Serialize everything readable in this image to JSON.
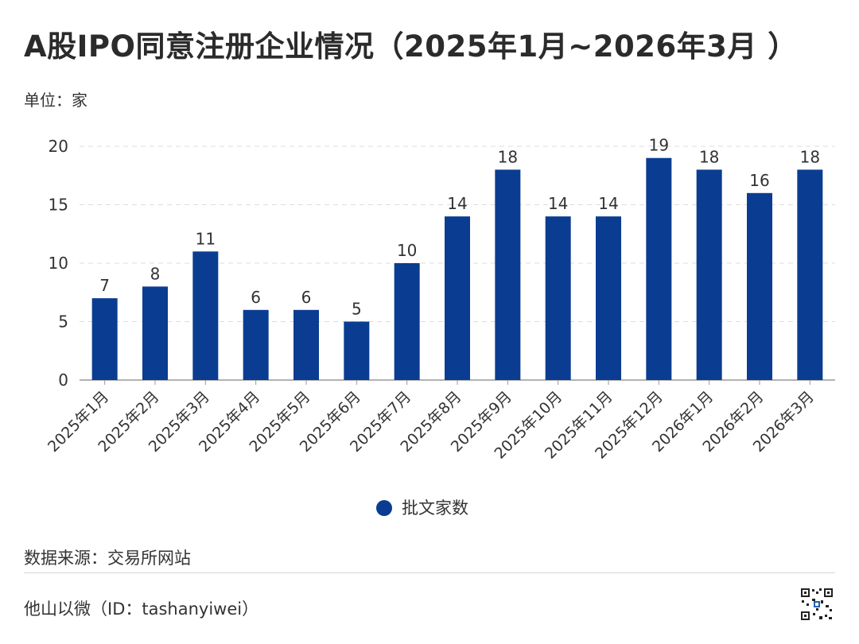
{
  "title": "A股IPO同意注册企业情况（2025年1月~2026年3月 ）",
  "unit_label": "单位：家",
  "source_label": "数据来源：交易所网站",
  "footer_label": "他山以微（ID：tashanyiwei）",
  "colors": {
    "bar": "#0a3d91",
    "grid": "#dddddd",
    "axis": "#999999",
    "text": "#333333"
  },
  "chart_data": {
    "type": "bar",
    "categories": [
      "2025年1月",
      "2025年2月",
      "2025年3月",
      "2025年4月",
      "2025年5月",
      "2025年6月",
      "2025年7月",
      "2025年8月",
      "2025年9月",
      "2025年10月",
      "2025年11月",
      "2025年12月",
      "2026年1月",
      "2026年2月",
      "2026年3月"
    ],
    "series": [
      {
        "name": "批文家数",
        "values": [
          7,
          8,
          11,
          6,
          6,
          5,
          10,
          14,
          18,
          14,
          14,
          19,
          18,
          16,
          18
        ]
      }
    ],
    "ylim": [
      0,
      20
    ],
    "yticks": [
      0,
      5,
      10,
      15,
      20
    ],
    "grid": true,
    "legend_position": "bottom-center",
    "data_labels": true
  }
}
